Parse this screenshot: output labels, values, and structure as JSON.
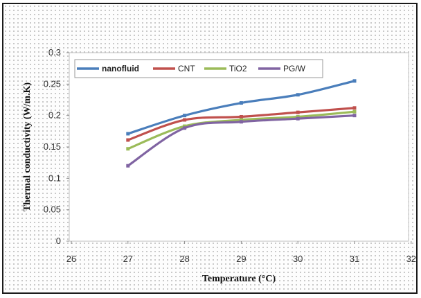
{
  "chart_data": {
    "type": "line",
    "xlabel": "Temperature  (°C)",
    "ylabel": "Thermal  conductivity  (W/m.K)",
    "xlim": [
      26,
      32
    ],
    "ylim": [
      0,
      0.3
    ],
    "x_ticks": [
      "26",
      "27",
      "28",
      "29",
      "30",
      "31",
      "32"
    ],
    "y_ticks": [
      "0",
      "0.05",
      "0.1",
      "0.15",
      "0.2",
      "0.25",
      "0.3"
    ],
    "x": [
      27,
      28,
      29,
      30,
      31
    ],
    "series": [
      {
        "name": "nanofluid",
        "color": "#4a7ebb",
        "values": [
          0.171,
          0.2,
          0.22,
          0.233,
          0.255
        ]
      },
      {
        "name": "CNT",
        "color": "#c0504d",
        "values": [
          0.161,
          0.193,
          0.198,
          0.205,
          0.212
        ]
      },
      {
        "name": "TiO2",
        "color": "#9bbb59",
        "values": [
          0.147,
          0.183,
          0.193,
          0.198,
          0.206
        ]
      },
      {
        "name": "PG/W",
        "color": "#8064a2",
        "values": [
          0.12,
          0.18,
          0.19,
          0.195,
          0.2
        ]
      }
    ],
    "grid": false,
    "legend_position": "top"
  }
}
